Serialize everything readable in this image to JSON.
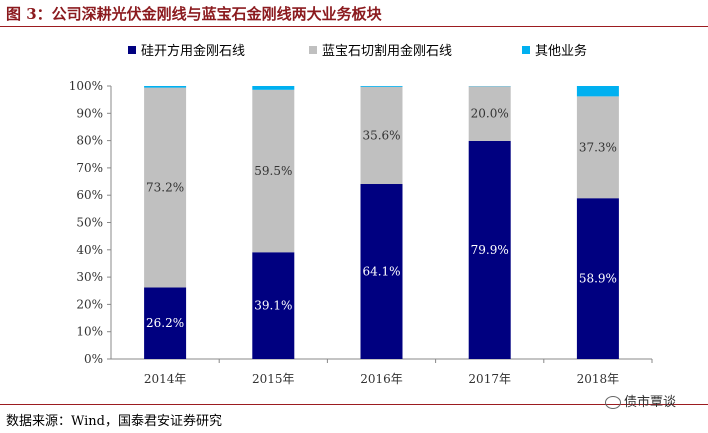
{
  "header": {
    "title": "图 3：公司深耕光伏金刚线与蓝宝石金刚线两大业务板块"
  },
  "footer": {
    "source": "数据来源：Wind，国泰君安证券研究",
    "watermark": "债市覃谈"
  },
  "colors": {
    "accent": "#9c1c20",
    "series_1": "#000080",
    "series_2": "#c0c0c0",
    "series_3": "#00b0f0",
    "label_dark": "#ffffff",
    "label_light": "#333333"
  },
  "chart_data": {
    "type": "bar",
    "stacked": true,
    "title": "",
    "xlabel": "",
    "ylabel": "",
    "ylim": [
      0,
      100
    ],
    "yticks": [
      "0%",
      "10%",
      "20%",
      "30%",
      "40%",
      "50%",
      "60%",
      "70%",
      "80%",
      "90%",
      "100%"
    ],
    "categories": [
      "2014年",
      "2015年",
      "2016年",
      "2017年",
      "2018年"
    ],
    "series": [
      {
        "name": "硅开方用金刚石线",
        "values": [
          26.2,
          39.1,
          64.1,
          79.9,
          58.9
        ],
        "labels": [
          "26.2%",
          "39.1%",
          "64.1%",
          "79.9%",
          "58.9%"
        ]
      },
      {
        "name": "蓝宝石切割用金刚石线",
        "values": [
          73.2,
          59.5,
          35.6,
          20.0,
          37.3
        ],
        "labels": [
          "73.2%",
          "59.5%",
          "35.6%",
          "20.0%",
          "37.3%"
        ]
      },
      {
        "name": "其他业务",
        "values": [
          0.6,
          1.4,
          0.3,
          0.1,
          3.8
        ],
        "labels": [
          "",
          "",
          "",
          "",
          ""
        ]
      }
    ],
    "legend_position": "top",
    "grid": false
  }
}
